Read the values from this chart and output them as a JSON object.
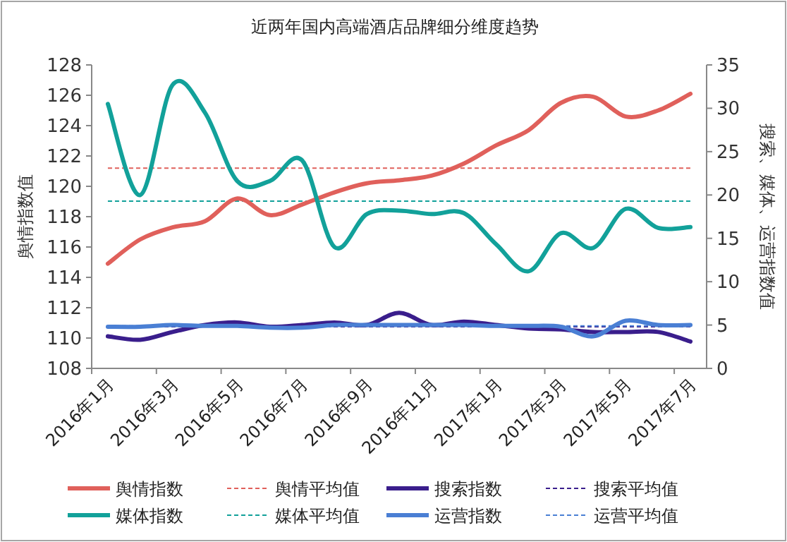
{
  "chart_data": {
    "type": "line",
    "title": "近两年国内高端酒店品牌细分维度趋势",
    "ylabel": "舆情指数值",
    "y2label": "搜索、媒体、运营指数值",
    "categories": [
      "2016年1月",
      null,
      "2016年3月",
      null,
      "2016年5月",
      null,
      "2016年7月",
      null,
      "2016年9月",
      null,
      "2016年11月",
      null,
      "2017年1月",
      null,
      "2017年3月",
      null,
      "2017年5月",
      null,
      "2017年7月"
    ],
    "series": [
      {
        "name": "舆情指数",
        "color": "#e0605b",
        "axis": "y",
        "values": [
          114.9,
          116.5,
          117.3,
          117.7,
          119.2,
          118.1,
          118.8,
          119.6,
          120.2,
          120.4,
          120.7,
          121.5,
          122.7,
          123.7,
          125.5,
          125.9,
          124.6,
          125.0,
          126.1
        ]
      },
      {
        "name": "搜索指数",
        "color": "#3a1e8c",
        "axis": "y2",
        "values": [
          3.7,
          3.3,
          4.2,
          5.0,
          5.3,
          4.8,
          5.0,
          5.3,
          5.0,
          6.4,
          5.0,
          5.4,
          5.0,
          4.6,
          4.5,
          4.2,
          4.2,
          4.2,
          3.1
        ]
      },
      {
        "name": "媒体指数",
        "color": "#12a19a",
        "axis": "y2",
        "values": [
          30.5,
          20.0,
          32.7,
          29.5,
          21.6,
          21.6,
          24.0,
          14.0,
          17.8,
          18.2,
          17.8,
          17.9,
          14.3,
          11.2,
          15.6,
          13.9,
          18.4,
          16.2,
          16.3
        ]
      },
      {
        "name": "运营指数",
        "color": "#4a7fd4",
        "axis": "y2",
        "values": [
          4.8,
          4.8,
          5.0,
          4.9,
          4.9,
          4.7,
          4.7,
          5.0,
          5.0,
          5.0,
          5.0,
          5.0,
          4.9,
          4.9,
          4.8,
          3.7,
          5.5,
          5.0,
          5.0
        ]
      }
    ],
    "ref_lines": [
      {
        "axis": "y",
        "value": 121.2,
        "label": "舆情平均值",
        "color": "#e0605b",
        "line_style": "dashed"
      },
      {
        "axis": "y2",
        "value": 4.8,
        "label": "搜索平均值",
        "color": "#3a1e8c",
        "line_style": "dashed"
      },
      {
        "axis": "y2",
        "value": 19.3,
        "label": "媒体平均值",
        "color": "#12a19a",
        "line_style": "dashed"
      },
      {
        "axis": "y2",
        "value": 4.9,
        "label": "运营平均值",
        "color": "#4a7fd4",
        "line_style": "dashed"
      }
    ],
    "ylim": [
      108,
      128
    ],
    "yticks": [
      108,
      110,
      112,
      114,
      116,
      118,
      120,
      122,
      124,
      126,
      128
    ],
    "y2lim": [
      0,
      35
    ],
    "y2ticks": [
      0,
      5,
      10,
      15,
      20,
      25,
      30,
      35
    ],
    "legend": "bottom",
    "grid": false,
    "marker": "none",
    "line_style": "solid"
  }
}
